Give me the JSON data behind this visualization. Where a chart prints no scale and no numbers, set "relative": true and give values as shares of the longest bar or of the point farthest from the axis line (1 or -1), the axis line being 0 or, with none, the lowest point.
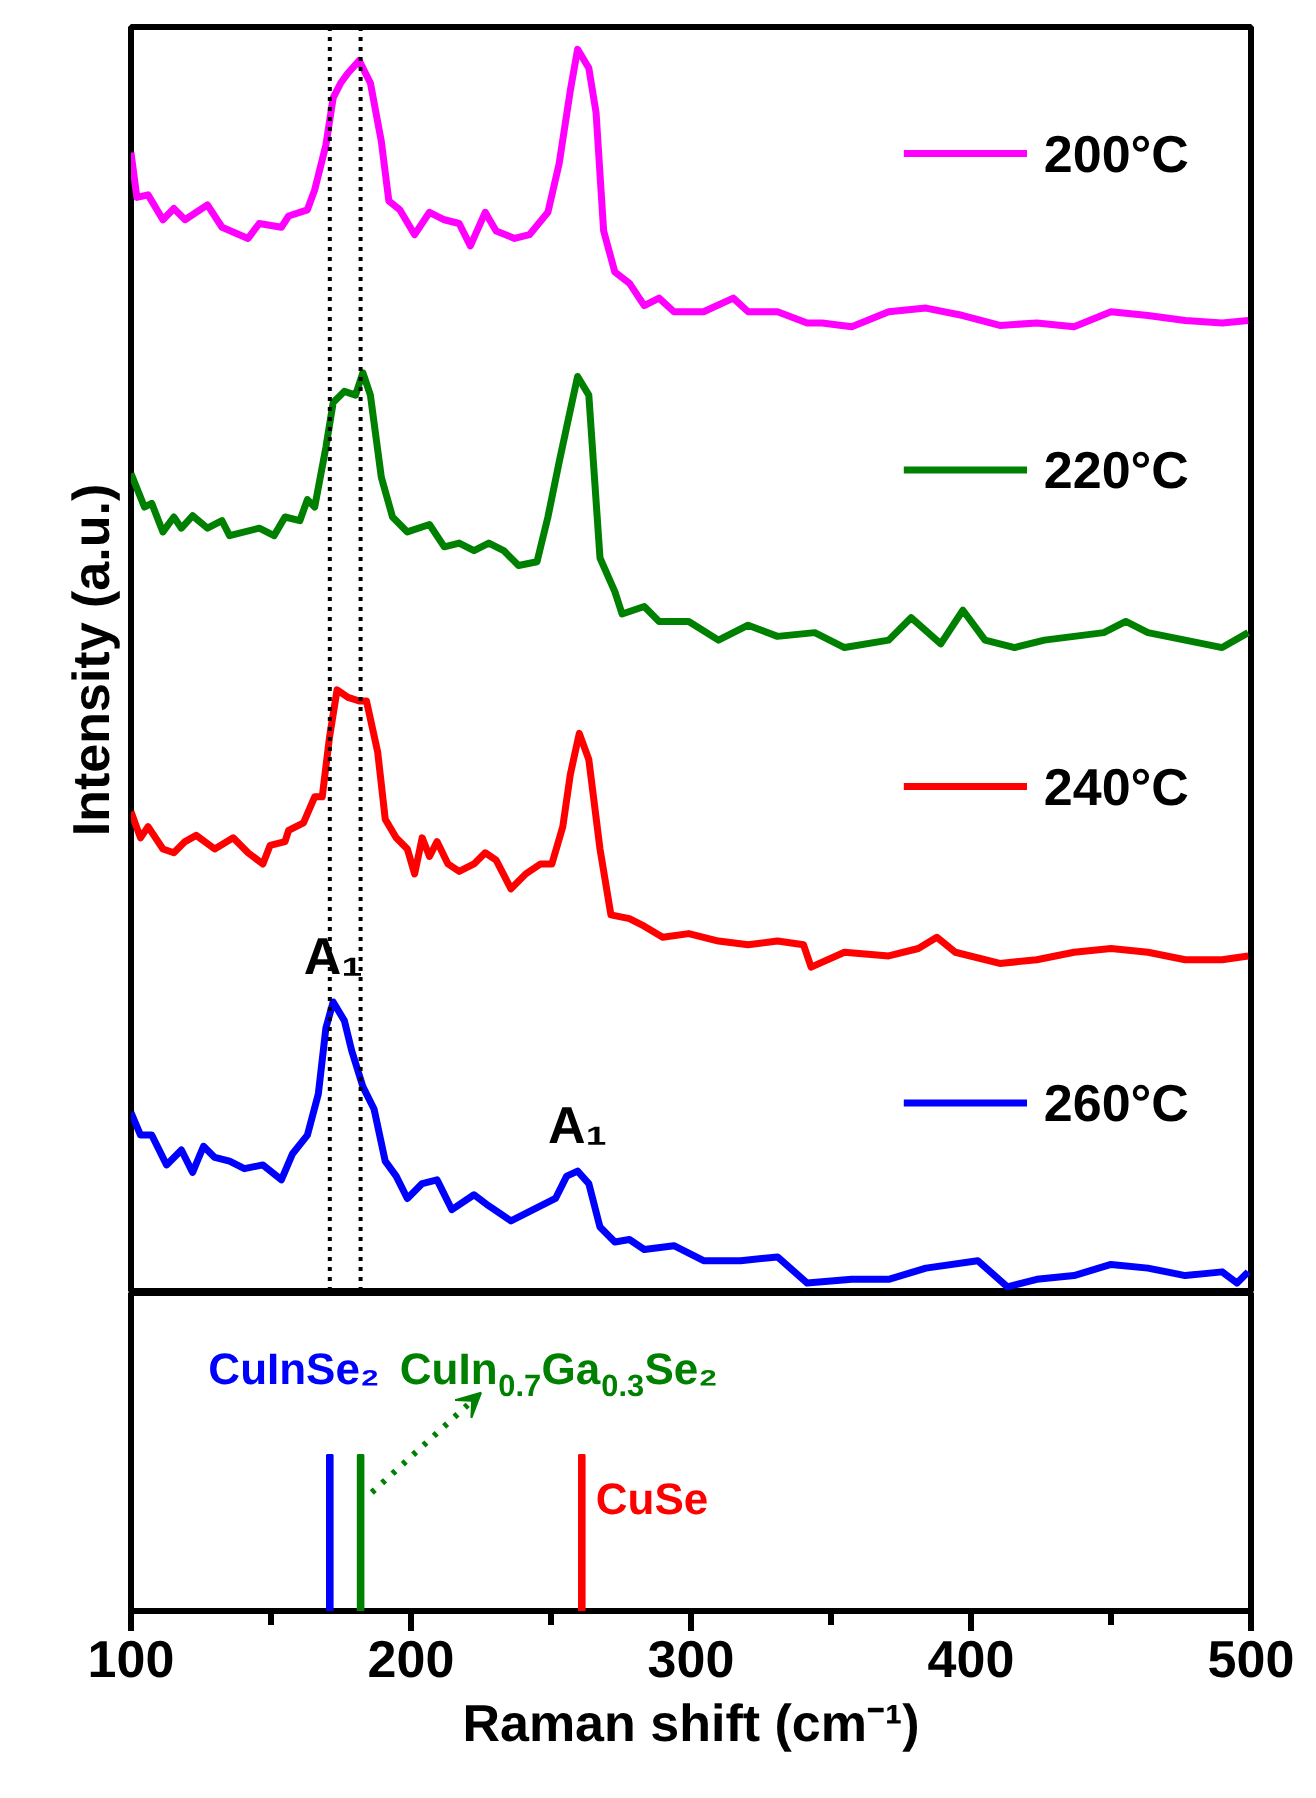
{
  "chart_data": [
    {
      "type": "line",
      "relative": true,
      "xlim": [
        100,
        500
      ],
      "tick_labels": false,
      "ylabel": "Intensity (a.u.)",
      "legend": "right",
      "ref_lines": [
        {
          "axis": "x",
          "value": 171,
          "color": "#000000",
          "line_style": "dotted"
        },
        {
          "axis": "x",
          "value": 182,
          "color": "#000000",
          "line_style": "dotted"
        }
      ],
      "annotations": [
        {
          "text": "A₁",
          "x": 172.2,
          "y": 0.234
        },
        {
          "text": "A₁",
          "x": 259.5,
          "y": 0.098
        }
      ],
      "series": [
        {
          "name": "200°C",
          "color": "#ff00ff",
          "x": [
            100,
            102.1,
            106.1,
            111.4,
            115.3,
            119.3,
            127.3,
            132.5,
            141.8,
            145.8,
            153.7,
            156.3,
            163,
            165.6,
            169.6,
            172.2,
            174.9,
            177.5,
            181.5,
            185.5,
            189.4,
            192.1,
            196.0,
            201.3,
            206.6,
            211.9,
            217.2,
            221.2,
            226.5,
            230.4,
            237.0,
            242.3,
            248.9,
            252.9,
            256.9,
            259.5,
            263.5,
            266.1,
            268.8,
            272.8,
            278.0,
            283.3,
            288.6,
            293.9,
            304.5,
            315.1,
            320.4,
            330.9,
            341.5,
            346.8,
            357.4,
            370.6,
            383.9,
            397.1,
            410.3,
            423.5,
            436.8,
            450.0,
            463.2,
            476.5,
            489.7,
            499
          ],
          "values": [
            0.917,
            0.881,
            0.883,
            0.863,
            0.872,
            0.863,
            0.875,
            0.857,
            0.848,
            0.86,
            0.857,
            0.866,
            0.871,
            0.887,
            0.923,
            0.961,
            0.973,
            0.981,
            0.991,
            0.973,
            0.926,
            0.878,
            0.871,
            0.851,
            0.869,
            0.863,
            0.86,
            0.842,
            0.869,
            0.854,
            0.848,
            0.851,
            0.869,
            0.908,
            0.967,
            1.0,
            0.985,
            0.949,
            0.854,
            0.821,
            0.812,
            0.794,
            0.8,
            0.789,
            0.789,
            0.8,
            0.789,
            0.789,
            0.78,
            0.78,
            0.777,
            0.789,
            0.792,
            0.786,
            0.778,
            0.78,
            0.777,
            0.789,
            0.786,
            0.782,
            0.78,
            0.782
          ]
        },
        {
          "name": "220°C",
          "color": "#008000",
          "x": [
            100,
            104.8,
            107.4,
            111.4,
            115.3,
            118.0,
            122.0,
            127.3,
            132.5,
            135.2,
            145.8,
            151.1,
            155.0,
            160.3,
            163,
            165.6,
            169.6,
            172.2,
            176.2,
            180.2,
            182.8,
            185.5,
            189.4,
            193.4,
            198.7,
            206.6,
            211.9,
            217.2,
            222.5,
            227.8,
            233.1,
            238.4,
            245.0,
            248.9,
            252.9,
            256.9,
            259.5,
            263.5,
            267.5,
            272.8,
            275.4,
            283.3,
            288.6,
            299.2,
            309.8,
            320.4,
            330.9,
            344.2,
            354.8,
            370.6,
            378.6,
            389.2,
            397.1,
            405.0,
            415.6,
            426.2,
            436.8,
            447.4,
            455.3,
            463.2,
            476.5,
            489.7,
            499
          ],
          "values": [
            0.659,
            0.632,
            0.635,
            0.612,
            0.624,
            0.615,
            0.625,
            0.615,
            0.621,
            0.609,
            0.615,
            0.609,
            0.624,
            0.621,
            0.638,
            0.632,
            0.68,
            0.716,
            0.725,
            0.722,
            0.74,
            0.722,
            0.656,
            0.624,
            0.612,
            0.618,
            0.6,
            0.603,
            0.597,
            0.603,
            0.597,
            0.585,
            0.588,
            0.624,
            0.668,
            0.71,
            0.737,
            0.722,
            0.591,
            0.564,
            0.546,
            0.552,
            0.54,
            0.54,
            0.525,
            0.537,
            0.528,
            0.531,
            0.519,
            0.525,
            0.543,
            0.522,
            0.549,
            0.525,
            0.519,
            0.525,
            0.528,
            0.531,
            0.54,
            0.531,
            0.525,
            0.519,
            0.531
          ]
        },
        {
          "name": "240°C",
          "color": "#ff0000",
          "x": [
            100,
            103.4,
            106.1,
            111.4,
            115.3,
            119.3,
            123.3,
            129.9,
            136.5,
            141.8,
            147.1,
            149.7,
            155.0,
            156.3,
            161.6,
            165.6,
            168.3,
            170.9,
            173.6,
            177.5,
            181.5,
            184.1,
            188.1,
            190.8,
            194.7,
            198.7,
            201.3,
            204.0,
            206.6,
            209.3,
            213.2,
            217.2,
            222.5,
            226.5,
            230.4,
            235.7,
            241.0,
            246.3,
            250.3,
            254.2,
            256.9,
            260.1,
            263.5,
            267.5,
            271.4,
            278.0,
            283.3,
            289.9,
            299.2,
            309.8,
            320.4,
            330.9,
            340.2,
            342.9,
            354.8,
            370.6,
            381.2,
            387.8,
            394.4,
            410.3,
            423.5,
            436.8,
            450.0,
            463.2,
            476.5,
            489.7,
            499
          ],
          "values": [
            0.387,
            0.366,
            0.375,
            0.357,
            0.354,
            0.363,
            0.368,
            0.357,
            0.366,
            0.354,
            0.345,
            0.36,
            0.363,
            0.372,
            0.378,
            0.399,
            0.399,
            0.447,
            0.485,
            0.479,
            0.476,
            0.476,
            0.435,
            0.381,
            0.366,
            0.357,
            0.337,
            0.366,
            0.351,
            0.363,
            0.345,
            0.339,
            0.345,
            0.354,
            0.348,
            0.325,
            0.337,
            0.345,
            0.345,
            0.375,
            0.417,
            0.45,
            0.429,
            0.357,
            0.304,
            0.301,
            0.295,
            0.286,
            0.289,
            0.283,
            0.28,
            0.283,
            0.28,
            0.262,
            0.274,
            0.271,
            0.277,
            0.286,
            0.274,
            0.265,
            0.268,
            0.274,
            0.277,
            0.274,
            0.268,
            0.268,
            0.271
          ]
        },
        {
          "name": "260°C",
          "color": "#0000ff",
          "x": [
            100,
            103.4,
            107.4,
            112.7,
            118.0,
            122.0,
            125.9,
            129.9,
            135.2,
            140.5,
            147.1,
            153.7,
            157.7,
            163,
            166.9,
            169.6,
            172.2,
            176.2,
            178.8,
            182.8,
            186.8,
            190.8,
            194.7,
            198.7,
            204.0,
            209.3,
            214.6,
            222.5,
            227.8,
            235.7,
            241.0,
            246.3,
            251.6,
            255.6,
            259.5,
            263.5,
            267.5,
            272.8,
            278.0,
            283.3,
            293.9,
            304.5,
            317.7,
            330.9,
            341.5,
            357.4,
            370.6,
            383.9,
            402.4,
            413.0,
            423.5,
            436.8,
            450.0,
            463.2,
            476.5,
            489.7,
            495.0,
            499
          ],
          "values": [
            0.145,
            0.127,
            0.127,
            0.103,
            0.115,
            0.097,
            0.118,
            0.109,
            0.106,
            0.1,
            0.103,
            0.091,
            0.112,
            0.127,
            0.16,
            0.213,
            0.234,
            0.219,
            0.195,
            0.166,
            0.148,
            0.106,
            0.094,
            0.076,
            0.088,
            0.091,
            0.067,
            0.079,
            0.07,
            0.058,
            0.064,
            0.07,
            0.076,
            0.094,
            0.098,
            0.088,
            0.053,
            0.041,
            0.043,
            0.035,
            0.038,
            0.026,
            0.026,
            0.029,
            0.008,
            0.011,
            0.011,
            0.02,
            0.026,
            0.005,
            0.011,
            0.014,
            0.023,
            0.02,
            0.014,
            0.017,
            0.008,
            0.017
          ]
        }
      ]
    },
    {
      "type": "bar",
      "relative": true,
      "xlim": [
        100,
        500
      ],
      "tick_labels": "x",
      "xlabel": "Raman shift (cm⁻¹)",
      "legend": false,
      "xticks": [
        100,
        {
          "value": 150,
          "label": null
        },
        200,
        {
          "value": 250,
          "label": null
        },
        300,
        {
          "value": 350,
          "label": null
        },
        400,
        {
          "value": 450,
          "label": null
        },
        500
      ],
      "series": [
        {
          "name": "CuInSe₂",
          "color": "#0000ff",
          "x": [
            171
          ],
          "values": [
            1
          ]
        },
        {
          "name": "CuIn$_{0.7}$Ga$_{0.3}$Se₂",
          "color": "#008000",
          "x": [
            182
          ],
          "values": [
            1
          ]
        },
        {
          "name": "CuSe",
          "color": "#ff0000",
          "x": [
            261
          ],
          "values": [
            1
          ]
        }
      ]
    }
  ]
}
